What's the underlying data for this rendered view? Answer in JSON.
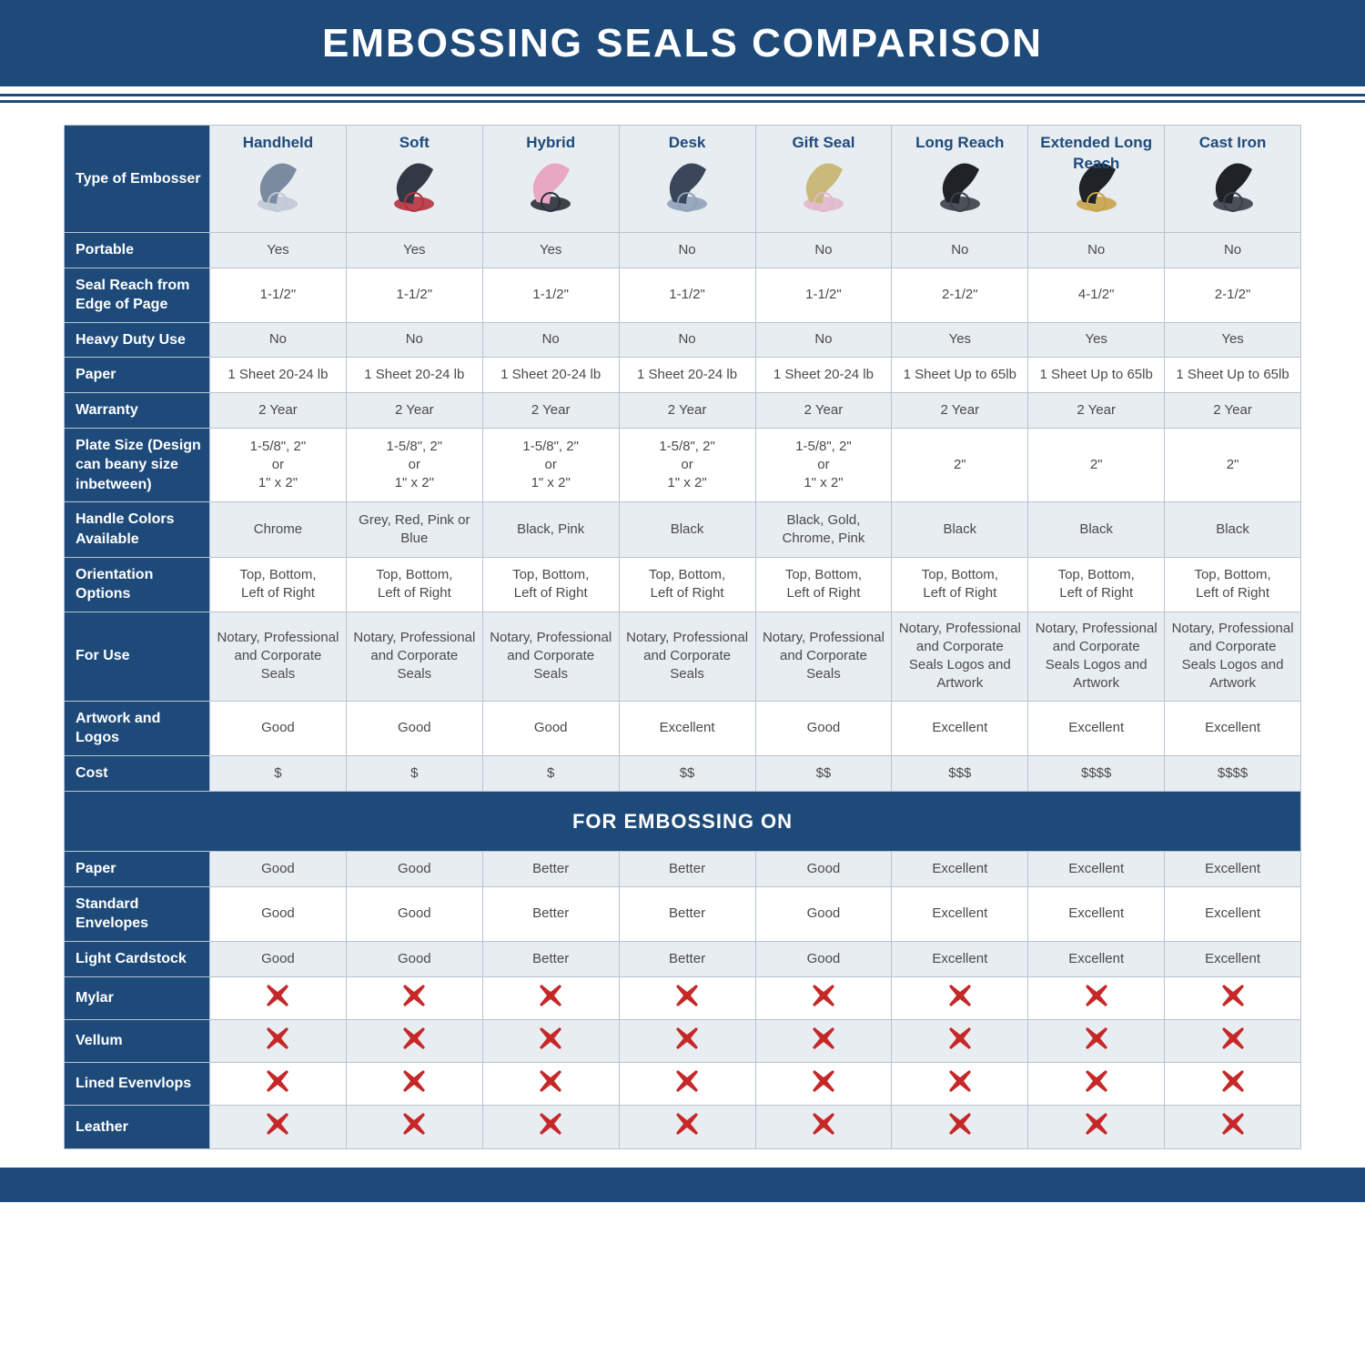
{
  "title": "EMBOSSING SEALS COMPARISON",
  "colors": {
    "header_bg": "#1e4a7a",
    "header_text": "#ffffff",
    "divider_border": "#1e4a7a",
    "label_col_bg": "#1e4a7a",
    "label_col_text": "#ffffff",
    "col_header_bg": "#e8edf2",
    "col_header_text": "#1e4a7a",
    "cell_alt_a": "#e8edf2",
    "cell_alt_b": "#ffffff",
    "cell_text": "#4a4a4a",
    "border": "#b8c4d0",
    "x_icon": "#c62828",
    "section_header_bg": "#1e4a7a",
    "section_header_text": "#ffffff",
    "footer_bg": "#1e4a7a"
  },
  "typography": {
    "title_fontsize": 44,
    "title_weight": "bold",
    "col_header_fontsize": 17,
    "row_label_fontsize": 16,
    "cell_fontsize": 15,
    "section_header_fontsize": 22
  },
  "table": {
    "type": "table",
    "label_header": "Type of Embosser",
    "columns": [
      "Handheld",
      "Soft",
      "Hybrid",
      "Desk",
      "Gift Seal",
      "Long Reach",
      "Extended Long Reach",
      "Cast Iron"
    ],
    "product_thumb_palettes": [
      [
        "#7a8ba0",
        "#c0c8d4"
      ],
      [
        "#333944",
        "#b5323e",
        "#d7a1b3",
        "#5b8fc2"
      ],
      [
        "#e8a7c3",
        "#2b2f38"
      ],
      [
        "#3a465a",
        "#8fa1b8"
      ],
      [
        "#c9b97a",
        "#e3b7cf",
        "#aab7c8"
      ],
      [
        "#1f2328",
        "#3a3f47"
      ],
      [
        "#1f2328",
        "#c9a24a"
      ],
      [
        "#1f2328",
        "#3a3f47"
      ]
    ],
    "rows": [
      {
        "label": "Portable",
        "cells": [
          "Yes",
          "Yes",
          "Yes",
          "No",
          "No",
          "No",
          "No",
          "No"
        ]
      },
      {
        "label": "Seal Reach from Edge of Page",
        "cells": [
          "1-1/2\"",
          "1-1/2\"",
          "1-1/2\"",
          "1-1/2\"",
          "1-1/2\"",
          "2-1/2\"",
          "4-1/2\"",
          "2-1/2\""
        ]
      },
      {
        "label": "Heavy Duty Use",
        "cells": [
          "No",
          "No",
          "No",
          "No",
          "No",
          "Yes",
          "Yes",
          "Yes"
        ]
      },
      {
        "label": "Paper",
        "cells": [
          "1 Sheet 20-24 lb",
          "1 Sheet 20-24 lb",
          "1 Sheet 20-24 lb",
          "1 Sheet 20-24 lb",
          "1 Sheet 20-24 lb",
          "1 Sheet Up to 65lb",
          "1 Sheet Up to 65lb",
          "1 Sheet Up to 65lb"
        ]
      },
      {
        "label": "Warranty",
        "cells": [
          "2 Year",
          "2 Year",
          "2 Year",
          "2 Year",
          "2 Year",
          "2 Year",
          "2 Year",
          "2 Year"
        ]
      },
      {
        "label": "Plate Size (Design can beany size inbetween)",
        "cells": [
          "1-5/8\", 2\"\nor\n1\" x 2\"",
          "1-5/8\", 2\"\nor\n1\" x 2\"",
          "1-5/8\", 2\"\nor\n1\" x 2\"",
          "1-5/8\", 2\"\nor\n1\" x 2\"",
          "1-5/8\", 2\"\nor\n1\" x 2\"",
          "2\"",
          "2\"",
          "2\""
        ]
      },
      {
        "label": "Handle Colors Available",
        "cells": [
          "Chrome",
          "Grey, Red, Pink or Blue",
          "Black, Pink",
          "Black",
          "Black, Gold, Chrome, Pink",
          "Black",
          "Black",
          "Black"
        ]
      },
      {
        "label": "Orientation Options",
        "cells": [
          "Top, Bottom,\nLeft of Right",
          "Top, Bottom,\nLeft of Right",
          "Top, Bottom,\nLeft of Right",
          "Top, Bottom,\nLeft of Right",
          "Top, Bottom,\nLeft of Right",
          "Top, Bottom,\nLeft of Right",
          "Top, Bottom,\nLeft of Right",
          "Top, Bottom,\nLeft of Right"
        ]
      },
      {
        "label": "For Use",
        "cells": [
          "Notary, Professional and Corporate Seals",
          "Notary, Professional and Corporate Seals",
          "Notary, Professional and Corporate Seals",
          "Notary, Professional and Corporate Seals",
          "Notary, Professional and Corporate Seals",
          "Notary, Professional and Corporate Seals Logos and Artwork",
          "Notary, Professional and Corporate Seals Logos and Artwork",
          "Notary, Professional and Corporate Seals Logos and Artwork"
        ]
      },
      {
        "label": "Artwork and Logos",
        "cells": [
          "Good",
          "Good",
          "Good",
          "Excellent",
          "Good",
          "Excellent",
          "Excellent",
          "Excellent"
        ]
      },
      {
        "label": "Cost",
        "cells": [
          "$",
          "$",
          "$",
          "$$",
          "$$",
          "$$$",
          "$$$$",
          "$$$$"
        ]
      }
    ],
    "section2_header": "FOR EMBOSSING ON",
    "rows2": [
      {
        "label": "Paper",
        "cells": [
          "Good",
          "Good",
          "Better",
          "Better",
          "Good",
          "Excellent",
          "Excellent",
          "Excellent"
        ]
      },
      {
        "label": "Standard Envelopes",
        "cells": [
          "Good",
          "Good",
          "Better",
          "Better",
          "Good",
          "Excellent",
          "Excellent",
          "Excellent"
        ]
      },
      {
        "label": "Light Cardstock",
        "cells": [
          "Good",
          "Good",
          "Better",
          "Better",
          "Good",
          "Excellent",
          "Excellent",
          "Excellent"
        ]
      },
      {
        "label": "Mylar",
        "cells": [
          "X",
          "X",
          "X",
          "X",
          "X",
          "X",
          "X",
          "X"
        ]
      },
      {
        "label": "Vellum",
        "cells": [
          "X",
          "X",
          "X",
          "X",
          "X",
          "X",
          "X",
          "X"
        ]
      },
      {
        "label": "Lined Evenvlops",
        "cells": [
          "X",
          "X",
          "X",
          "X",
          "X",
          "X",
          "X",
          "X"
        ]
      },
      {
        "label": "Leather",
        "cells": [
          "X",
          "X",
          "X",
          "X",
          "X",
          "X",
          "X",
          "X"
        ]
      }
    ]
  }
}
